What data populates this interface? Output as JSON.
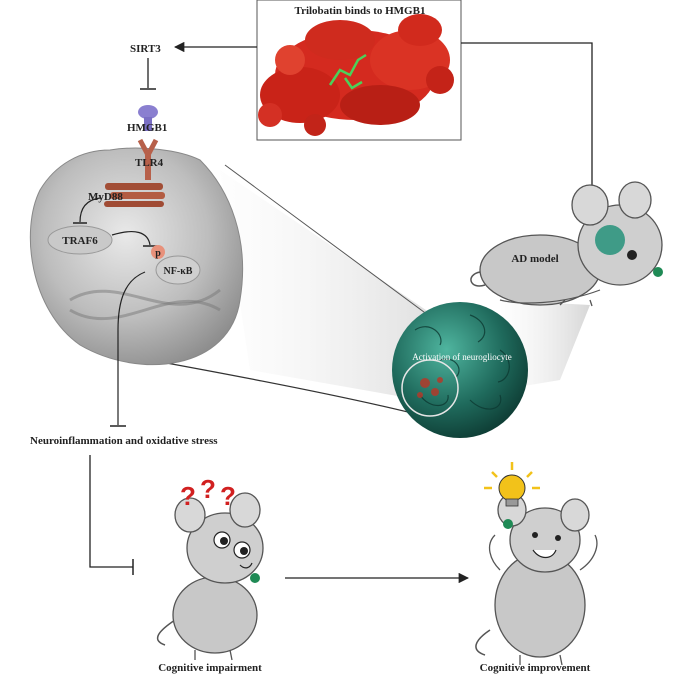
{
  "protein_box": {
    "title": "Trilobatin binds to HMGB1"
  },
  "pathway": {
    "sirt3": "SIRT3",
    "hmgb1": "HMGB1",
    "tlr4": "TLR4",
    "myd88": "MyD88",
    "traf6": "TRAF6",
    "phospho": "p",
    "nfkb": "NF-κB"
  },
  "ad_mouse_label": "AD model",
  "neuroglia_label": "Activation of neurogliocyte",
  "inflammation_label": "Neuroinflammation and oxidative stress",
  "impairment": {
    "symbols": [
      "?",
      "?",
      "?"
    ],
    "label": "Cognitive impairment"
  },
  "improvement": {
    "label": "Cognitive improvement"
  },
  "colors": {
    "protein_red": "#d42a1f",
    "cell_gray": "#c8c8c8",
    "tlr4_brown": "#b7604a",
    "hmgb1_purple": "#8a7fd0",
    "neuroglia_teal": "#1f6a5c",
    "question_red": "#d12020",
    "bulb_yellow": "#f2c21a"
  }
}
